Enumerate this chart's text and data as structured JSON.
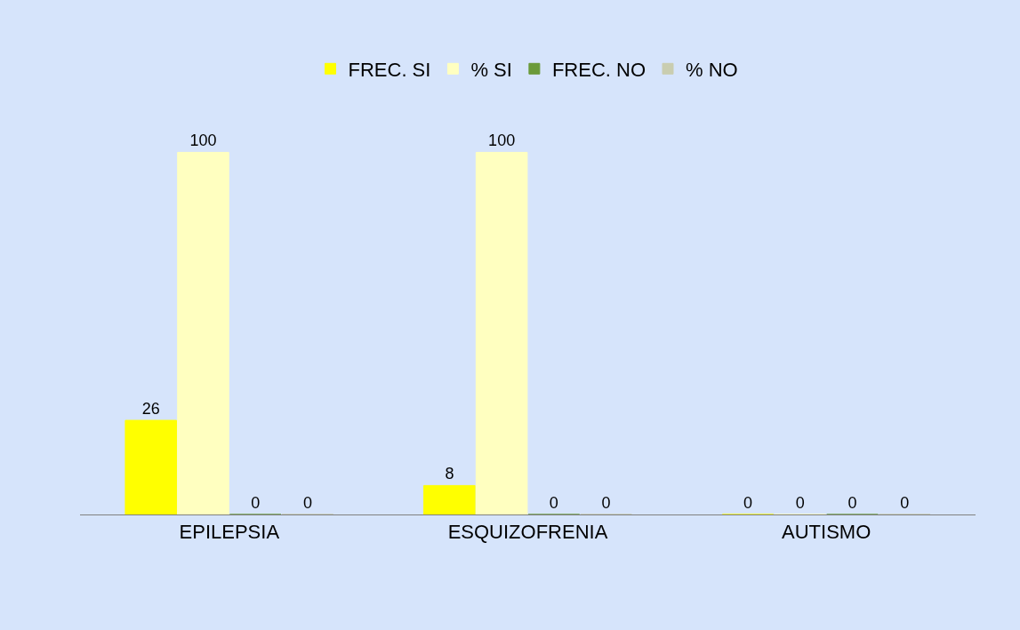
{
  "chart_data": {
    "type": "bar",
    "categories": [
      "EPILEPSIA",
      "ESQUIZOFRENIA",
      "AUTISMO"
    ],
    "series": [
      {
        "name": "FREC. SI",
        "color": "#ffff00",
        "values": [
          26,
          8,
          0
        ]
      },
      {
        "name": "% SI",
        "color": "#ffffc0",
        "values": [
          100,
          100,
          0
        ]
      },
      {
        "name": "FREC. NO",
        "color": "#6b9a3a",
        "values": [
          0,
          0,
          0
        ]
      },
      {
        "name": "% NO",
        "color": "#c9cdb0",
        "values": [
          0,
          0,
          0
        ]
      }
    ],
    "data_labels": true,
    "legend": "top",
    "grid": false
  }
}
